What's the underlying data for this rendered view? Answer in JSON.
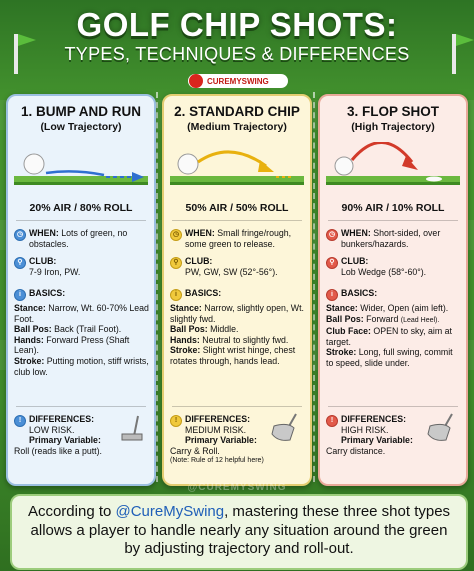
{
  "title": "GOLF CHIP SHOTS:",
  "subtitle": "TYPES, TECHNIQUES & DIFFERENCES",
  "brand": "CUREMYSWING",
  "watermark": "@CUREMYSWING",
  "cards": [
    {
      "title": "1. BUMP AND RUN",
      "subtitle": "(Low Trajectory)",
      "ratio": "20% AIR / 80% ROLL",
      "when_label": "WHEN:",
      "when_text": " Lots of green, no obstacles.",
      "club_label": "CLUB:",
      "club_text": "7-9 Iron, PW.",
      "basics_label": "BASICS:",
      "basics": [
        {
          "label": "Stance:",
          "text": " Narrow, Wt. 60-70% Lead Foot."
        },
        {
          "label": "Ball Pos:",
          "text": " Back (Trail Foot)."
        },
        {
          "label": "Hands:",
          "text": " Forward Press (Shaft Lean)."
        },
        {
          "label": "Stroke:",
          "text": " Putting motion, stiff wrists, club low."
        }
      ],
      "diff_label": "DIFFERENCES:",
      "diff_risk": "LOW RISK.",
      "pv_label": "Primary Variable:",
      "pv_text": "Roll (reads like a putt).",
      "colors": {
        "accent": "#4b8fd6",
        "arrow": "#2f6fd0"
      }
    },
    {
      "title": "2. STANDARD CHIP",
      "subtitle": "(Medium Trajectory)",
      "ratio": "50% AIR / 50% ROLL",
      "when_label": "WHEN:",
      "when_text": " Small fringe/rough, some green to release.",
      "club_label": "CLUB:",
      "club_text": "PW, GW, SW (52°-56°).",
      "basics_label": "BASICS:",
      "basics": [
        {
          "label": "Stance:",
          "text": " Narrow, slightly open, Wt. slightly fwd."
        },
        {
          "label": "Ball Pos:",
          "text": " Middle."
        },
        {
          "label": "Hands:",
          "text": " Neutral to slightly fwd."
        },
        {
          "label": "Stroke:",
          "text": " Slight wrist hinge, chest rotates through, hands lead."
        }
      ],
      "diff_label": "DIFFERENCES:",
      "diff_risk": "MEDIUM RISK.",
      "pv_label": "Primary Variable:",
      "pv_text": "Carry & Roll.",
      "note": "(Note: Rule of 12 helpful here)",
      "colors": {
        "accent": "#f0c93c",
        "arrow": "#e8b10f"
      }
    },
    {
      "title": "3. FLOP SHOT",
      "subtitle": "(High Trajectory)",
      "ratio": "90% AIR / 10% ROLL",
      "when_label": "WHEN:",
      "when_text": " Short-sided, over bunkers/hazards.",
      "club_label": "CLUB:",
      "club_text": "Lob Wedge (58°-60°).",
      "basics_label": "BASICS:",
      "basics": [
        {
          "label": "Stance:",
          "text": " Wider, Open (aim left)."
        },
        {
          "label": "Ball Pos:",
          "text": " Forward ",
          "extra": "(Lead Heel)."
        },
        {
          "label": "Club Face:",
          "text": " OPEN to sky, aim at target."
        },
        {
          "label": "Stroke:",
          "text": " Long, full swing, commit to speed, slide under."
        }
      ],
      "diff_label": "DIFFERENCES:",
      "diff_risk": "HIGH RISK.",
      "pv_label": "Primary Variable:",
      "pv_text": "Carry distance.",
      "colors": {
        "accent": "#e25a4a",
        "arrow": "#d23a2a"
      }
    }
  ],
  "footer": {
    "pre": "According to ",
    "handle": "@CureMySwing",
    "post": ", mastering these three shot types allows a player to handle nearly any situation around the green by adjusting trajectory and roll-out."
  },
  "icons": [
    "when-clock-icon",
    "club-icon",
    "basics-icon",
    "differences-icon",
    "golf-ball-icon",
    "putter-icon",
    "wedge-icon",
    "flag-icon"
  ]
}
